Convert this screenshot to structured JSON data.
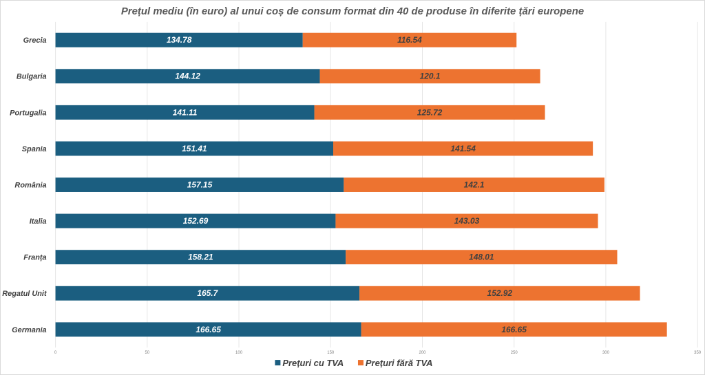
{
  "chart_data": {
    "type": "bar",
    "orientation": "horizontal",
    "stacked": true,
    "title": "Prețul mediu (în euro) al unui coș de consum format din 40 de produse în diferite țări europene",
    "categories": [
      "Grecia",
      "Bulgaria",
      "Portugalia",
      "Spania",
      "România",
      "Italia",
      "Franța",
      "Regatul Unit",
      "Germania"
    ],
    "series": [
      {
        "name": "Prețuri cu TVA",
        "color": "#1b5e80",
        "values": [
          134.78,
          144.12,
          141.11,
          151.41,
          157.15,
          152.69,
          158.21,
          165.7,
          166.65
        ]
      },
      {
        "name": "Prețuri fără TVA",
        "color": "#ed7330",
        "values": [
          116.54,
          120.1,
          125.72,
          141.54,
          142.1,
          143.03,
          148.01,
          152.92,
          166.65
        ]
      }
    ],
    "xlim": [
      0,
      350
    ],
    "xticks": [
      0,
      50,
      100,
      150,
      200,
      250,
      300,
      350
    ],
    "grid": "vertical",
    "legend": "bottom-center"
  }
}
